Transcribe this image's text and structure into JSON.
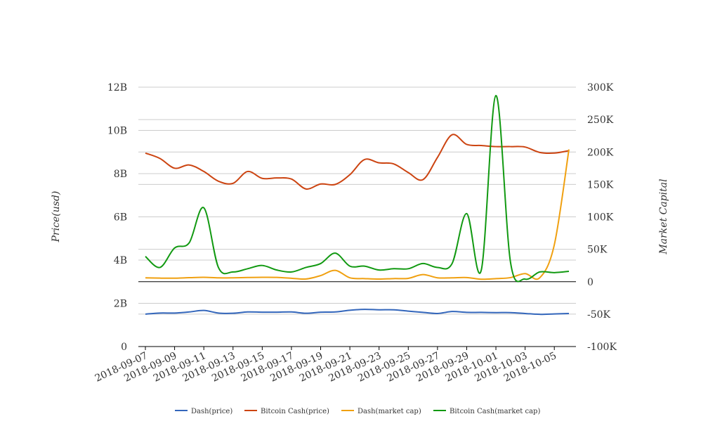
{
  "chart_data": {
    "type": "line",
    "title": "",
    "x": [
      "2018-09-07",
      "2018-09-08",
      "2018-09-09",
      "2018-09-10",
      "2018-09-11",
      "2018-09-12",
      "2018-09-13",
      "2018-09-14",
      "2018-09-15",
      "2018-09-16",
      "2018-09-17",
      "2018-09-18",
      "2018-09-19",
      "2018-09-20",
      "2018-09-21",
      "2018-09-22",
      "2018-09-23",
      "2018-09-24",
      "2018-09-25",
      "2018-09-26",
      "2018-09-27",
      "2018-09-28",
      "2018-09-29",
      "2018-09-30",
      "2018-10-01",
      "2018-10-02",
      "2018-10-03",
      "2018-10-04",
      "2018-10-05",
      "2018-10-06"
    ],
    "x_tick_labels": [
      "2018-09-07",
      "2018-09-09",
      "2018-09-11",
      "2018-09-13",
      "2018-09-15",
      "2018-09-17",
      "2018-09-19",
      "2018-09-21",
      "2018-09-23",
      "2018-09-25",
      "2018-09-27",
      "2018-09-29",
      "2018-10-01",
      "2018-10-03",
      "2018-10-05"
    ],
    "y_left": {
      "label": "Price(usd)",
      "range": [
        0,
        12000000000
      ],
      "ticks": [
        "0",
        "2B",
        "4B",
        "6B",
        "8B",
        "10B",
        "12B"
      ]
    },
    "y_right": {
      "label": "Market Capital",
      "range": [
        -100000,
        300000
      ],
      "ticks": [
        "-100K",
        "-50K",
        "0",
        "50K",
        "100K",
        "150K",
        "200K",
        "250K",
        "300K"
      ]
    },
    "grid": true,
    "legend_position": "bottom",
    "series": [
      {
        "name": "Dash(price)",
        "axis": "left",
        "color": "#3366bb",
        "values": [
          1500000000,
          1550000000,
          1550000000,
          1600000000,
          1670000000,
          1550000000,
          1540000000,
          1600000000,
          1590000000,
          1590000000,
          1600000000,
          1540000000,
          1590000000,
          1600000000,
          1680000000,
          1720000000,
          1700000000,
          1700000000,
          1640000000,
          1580000000,
          1530000000,
          1620000000,
          1580000000,
          1580000000,
          1570000000,
          1570000000,
          1530000000,
          1490000000,
          1510000000,
          1530000000
        ]
      },
      {
        "name": "Bitcoin Cash(price)",
        "axis": "left",
        "color": "#cc4411",
        "values": [
          8950000000,
          8700000000,
          8250000000,
          8400000000,
          8100000000,
          7650000000,
          7550000000,
          8100000000,
          7780000000,
          7800000000,
          7750000000,
          7290000000,
          7520000000,
          7500000000,
          7950000000,
          8650000000,
          8500000000,
          8450000000,
          8050000000,
          7720000000,
          8750000000,
          9800000000,
          9350000000,
          9300000000,
          9250000000,
          9250000000,
          9230000000,
          8980000000,
          8950000000,
          9060000000
        ]
      },
      {
        "name": "Dash(market cap)",
        "axis": "right",
        "color": "#f0a010",
        "values": [
          6000,
          5500,
          5400,
          6200,
          6800,
          5900,
          6000,
          6500,
          6800,
          6600,
          5300,
          4200,
          9400,
          17500,
          6000,
          4800,
          4000,
          4800,
          5200,
          11000,
          6000,
          6000,
          6400,
          3800,
          4800,
          6300,
          12500,
          6000,
          57000,
          204000
        ]
      },
      {
        "name": "Bitcoin Cash(market cap)",
        "axis": "right",
        "color": "#119911",
        "values": [
          39000,
          22000,
          52000,
          60000,
          114000,
          22000,
          15000,
          20000,
          25000,
          18000,
          15000,
          22000,
          28000,
          44000,
          24000,
          24000,
          18000,
          20000,
          20000,
          28000,
          22000,
          28000,
          105000,
          18000,
          287000,
          30000,
          4000,
          15000,
          14000,
          16000
        ]
      }
    ]
  }
}
